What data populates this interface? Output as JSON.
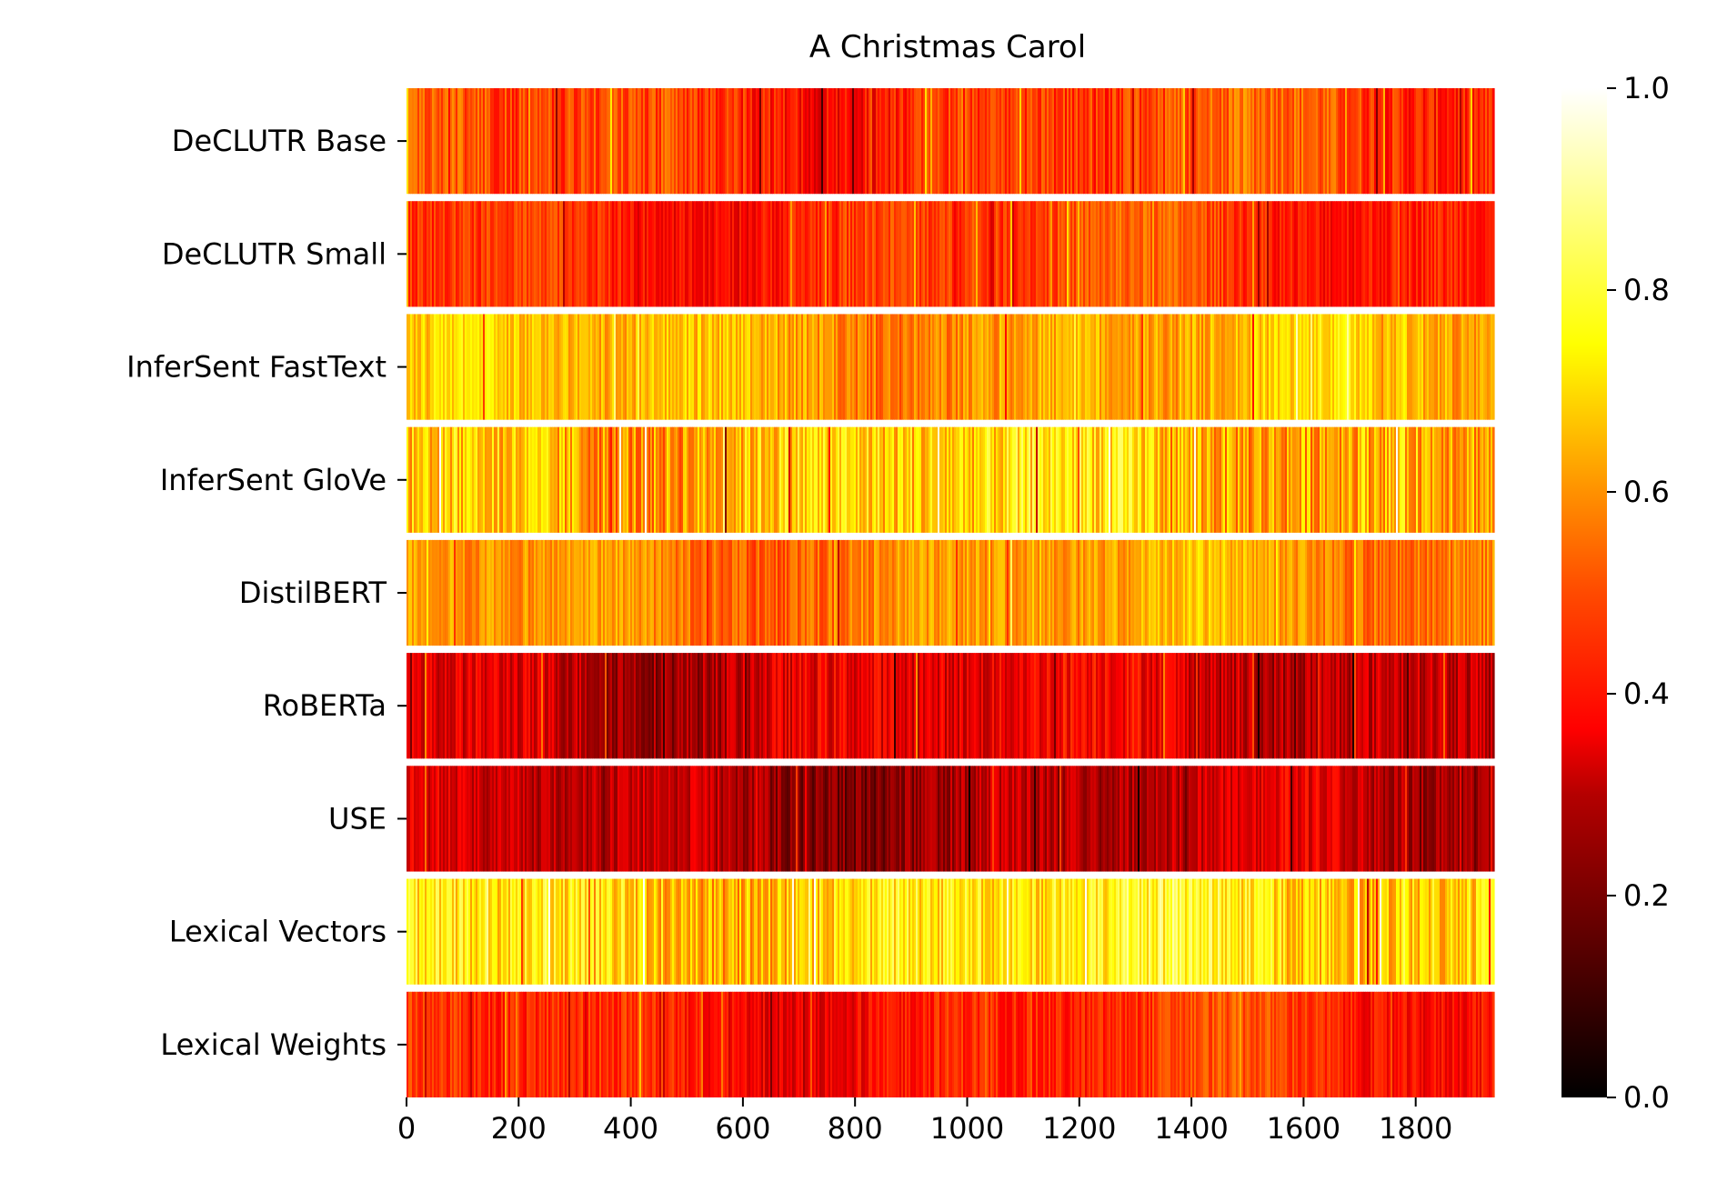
{
  "chart_data": {
    "type": "heatmap",
    "title": "A Christmas Carol",
    "xlabel": "",
    "ylabel": "",
    "rows": [
      {
        "label": "DeCLUTR Base",
        "mean": 0.45,
        "spread": 0.09,
        "phase": 1.1
      },
      {
        "label": "DeCLUTR Small",
        "mean": 0.44,
        "spread": 0.07,
        "phase": 2.3
      },
      {
        "label": "InferSent FastText",
        "mean": 0.62,
        "spread": 0.09,
        "phase": 0.4
      },
      {
        "label": "InferSent GloVe",
        "mean": 0.66,
        "spread": 0.14,
        "phase": 3.0
      },
      {
        "label": "DistilBERT",
        "mean": 0.58,
        "spread": 0.08,
        "phase": 1.7
      },
      {
        "label": "RoBERTa",
        "mean": 0.31,
        "spread": 0.09,
        "phase": 2.8
      },
      {
        "label": "USE",
        "mean": 0.26,
        "spread": 0.08,
        "phase": 0.9
      },
      {
        "label": "Lexical Vectors",
        "mean": 0.71,
        "spread": 0.13,
        "phase": 2.1
      },
      {
        "label": "Lexical Weights",
        "mean": 0.41,
        "spread": 0.07,
        "phase": 1.4
      }
    ],
    "x_range": [
      0,
      1940
    ],
    "x_ticks": [
      0,
      200,
      400,
      600,
      800,
      1000,
      1200,
      1400,
      1600,
      1800
    ],
    "colorbar": {
      "range": [
        0.0,
        1.0
      ],
      "ticks": [
        "0.0",
        "0.2",
        "0.4",
        "0.6",
        "0.8",
        "1.0"
      ],
      "colormap": "hot"
    },
    "grid": false,
    "legend": "colorbar-right"
  }
}
